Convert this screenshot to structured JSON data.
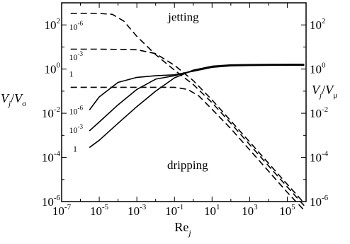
{
  "chart_data": {
    "type": "line",
    "xlabel": {
      "base": "Re",
      "sub": "j"
    },
    "ylabel_left": {
      "v1": "V",
      "sub1": "j",
      "sep": "/",
      "v2": "V",
      "sub2": "σ"
    },
    "ylabel_right": {
      "v1": "V",
      "sub1": "j",
      "sep": "/",
      "v2": "V",
      "sub2": "μ"
    },
    "xscale": "log",
    "yscale": "log",
    "xlim": [
      1e-07,
      1000000.0
    ],
    "ylim": [
      1e-06,
      1000
    ],
    "x_ticks": [
      {
        "base": "10",
        "exp": "-7",
        "value": 1e-07
      },
      {
        "base": "10",
        "exp": "-5",
        "value": 1e-05
      },
      {
        "base": "10",
        "exp": "-3",
        "value": 0.001
      },
      {
        "base": "10",
        "exp": "-1",
        "value": 0.1
      },
      {
        "base": "10",
        "exp": "1",
        "value": 10.0
      },
      {
        "base": "10",
        "exp": "3",
        "value": 1000.0
      },
      {
        "base": "10",
        "exp": "5",
        "value": 100000.0
      }
    ],
    "y_ticks": [
      {
        "base": "10",
        "exp": "2",
        "value": 100.0
      },
      {
        "base": "10",
        "exp": "0",
        "value": 1
      },
      {
        "base": "10",
        "exp": "-2",
        "value": 0.01
      },
      {
        "base": "10",
        "exp": "-4",
        "value": 0.0001
      },
      {
        "base": "10",
        "exp": "-6",
        "value": 1e-06
      }
    ],
    "annotations": [
      {
        "text": "jetting",
        "x": 0.3,
        "y": 150
      },
      {
        "text": "dripping",
        "x": 0.5,
        "y": 3e-05
      }
    ],
    "series": [
      {
        "style": "dashed",
        "label": {
          "base": "10",
          "exp": "-6",
          "x": 2.5e-07,
          "y": 60
        },
        "points": [
          [
            3e-07,
            330
          ],
          [
            1e-06,
            330
          ],
          [
            1e-05,
            330
          ],
          [
            5e-05,
            300
          ],
          [
            0.0002,
            150
          ],
          [
            0.001,
            30
          ],
          [
            0.01,
            4.5
          ],
          [
            0.1,
            0.9
          ],
          [
            1,
            0.2
          ],
          [
            10,
            0.03
          ],
          [
            100,
            0.0035
          ],
          [
            1000,
            0.00038
          ],
          [
            10000.0,
            4.2e-05
          ],
          [
            100000.0,
            4.6e-06
          ],
          [
            800000.0,
            6.5e-07
          ]
        ]
      },
      {
        "style": "dashed",
        "label": {
          "base": "10",
          "exp": "-3",
          "x": 2.5e-07,
          "y": 2.5
        },
        "points": [
          [
            3e-07,
            8
          ],
          [
            1e-05,
            8
          ],
          [
            0.001,
            7.5
          ],
          [
            0.01,
            5
          ],
          [
            0.1,
            1.5
          ],
          [
            1,
            0.3
          ],
          [
            10,
            0.04
          ],
          [
            100,
            0.0045
          ],
          [
            1000,
            0.0005
          ],
          [
            10000.0,
            5.5e-05
          ],
          [
            100000.0,
            6e-06
          ],
          [
            800000.0,
            8.5e-07
          ]
        ]
      },
      {
        "style": "dashed",
        "label": {
          "base": "1",
          "exp": "",
          "x": 2.5e-07,
          "y": 0.45
        },
        "points": [
          [
            3e-07,
            0.15
          ],
          [
            0.1,
            0.15
          ],
          [
            0.5,
            0.12
          ],
          [
            2,
            0.06
          ],
          [
            10,
            0.015
          ],
          [
            100,
            0.002
          ],
          [
            1000,
            0.00022
          ],
          [
            10000.0,
            2.4e-05
          ],
          [
            100000.0,
            2.6e-06
          ],
          [
            800000.0,
            4e-07
          ]
        ]
      },
      {
        "style": "solid",
        "label": {
          "base": "10",
          "exp": "-6",
          "x": 2.5e-07,
          "y": 0.009
        },
        "points": [
          [
            3e-06,
            0.014
          ],
          [
            1e-05,
            0.055
          ],
          [
            0.0001,
            0.25
          ],
          [
            0.001,
            0.42
          ],
          [
            0.01,
            0.5
          ],
          [
            0.1,
            0.55
          ],
          [
            1,
            0.8
          ],
          [
            10,
            1.2
          ],
          [
            100,
            1.4
          ],
          [
            1000,
            1.45
          ],
          [
            100000.0,
            1.5
          ],
          [
            800000.0,
            1.5
          ]
        ]
      },
      {
        "style": "solid",
        "label": {
          "base": "10",
          "exp": "-3",
          "x": 2.5e-07,
          "y": 0.0013
        },
        "points": [
          [
            3e-06,
            0.0016
          ],
          [
            1e-05,
            0.004
          ],
          [
            0.0001,
            0.024
          ],
          [
            0.001,
            0.12
          ],
          [
            0.01,
            0.35
          ],
          [
            0.1,
            0.5
          ],
          [
            1,
            0.85
          ],
          [
            10,
            1.3
          ],
          [
            100,
            1.5
          ],
          [
            1000,
            1.55
          ],
          [
            100000.0,
            1.6
          ],
          [
            800000.0,
            1.6
          ]
        ]
      },
      {
        "style": "solid",
        "label": {
          "base": "1",
          "exp": "",
          "x": 4e-07,
          "y": 0.00018
        },
        "points": [
          [
            3e-06,
            0.00028
          ],
          [
            1e-05,
            0.0006
          ],
          [
            0.0001,
            0.0035
          ],
          [
            0.001,
            0.02
          ],
          [
            0.01,
            0.1
          ],
          [
            0.1,
            0.4
          ],
          [
            1,
            0.9
          ],
          [
            10,
            1.35
          ],
          [
            100,
            1.55
          ],
          [
            1000,
            1.6
          ],
          [
            100000.0,
            1.65
          ],
          [
            800000.0,
            1.65
          ]
        ]
      }
    ]
  }
}
